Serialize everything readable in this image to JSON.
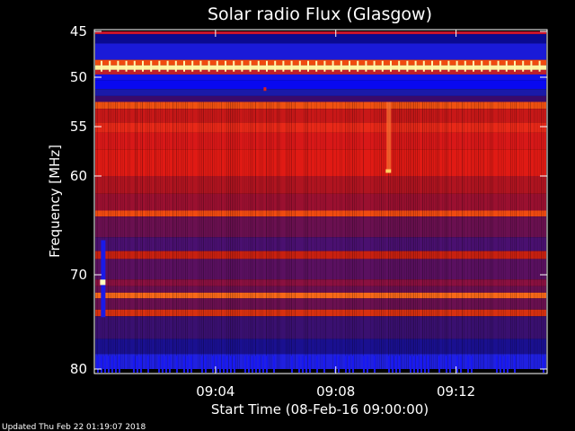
{
  "chart_data": {
    "type": "heatmap",
    "title": "Solar radio Flux (Glasgow)",
    "xlabel": "Start Time (08-Feb-16 09:00:00)",
    "ylabel": "Frequency [MHz]",
    "x_ticks": [
      "09:04",
      "09:08",
      "09:12"
    ],
    "x_tick_minutes": [
      4,
      8,
      12
    ],
    "xlim_minutes": [
      0,
      15
    ],
    "y_ticks": [
      45,
      50,
      55,
      60,
      70,
      80
    ],
    "ylim": [
      45,
      80
    ],
    "bands": [
      {
        "from": 45.0,
        "to": 45.3,
        "color": "#c8142a"
      },
      {
        "from": 45.3,
        "to": 46.3,
        "color": "#0a0a90"
      },
      {
        "from": 46.3,
        "to": 48.1,
        "color": "#1a1ad8"
      },
      {
        "from": 48.1,
        "to": 48.7,
        "color": "#f04a10"
      },
      {
        "from": 48.7,
        "to": 49.2,
        "color": "#fff2a0"
      },
      {
        "from": 49.2,
        "to": 49.7,
        "color": "#c0202a"
      },
      {
        "from": 49.7,
        "to": 50.3,
        "color": "#1010e8"
      },
      {
        "from": 50.3,
        "to": 51.2,
        "color": "#0808f0"
      },
      {
        "from": 51.2,
        "to": 51.9,
        "color": "#1a1aa8"
      },
      {
        "from": 51.9,
        "to": 52.5,
        "color": "#3a0a6a"
      },
      {
        "from": 52.5,
        "to": 53.2,
        "color": "#f05010"
      },
      {
        "from": 53.2,
        "to": 54.6,
        "color": "#c81818"
      },
      {
        "from": 54.6,
        "to": 55.6,
        "color": "#e82818"
      },
      {
        "from": 55.6,
        "to": 57.3,
        "color": "#d81818"
      },
      {
        "from": 57.3,
        "to": 60.0,
        "color": "#e01a14"
      },
      {
        "from": 60.0,
        "to": 61.8,
        "color": "#b01420"
      },
      {
        "from": 61.8,
        "to": 63.5,
        "color": "#9a1030"
      },
      {
        "from": 63.5,
        "to": 64.1,
        "color": "#f04a10"
      },
      {
        "from": 64.1,
        "to": 66.2,
        "color": "#6a1050"
      },
      {
        "from": 66.2,
        "to": 67.6,
        "color": "#4a1070"
      },
      {
        "from": 67.6,
        "to": 68.4,
        "color": "#c82010"
      },
      {
        "from": 68.4,
        "to": 70.5,
        "color": "#5a1060"
      },
      {
        "from": 70.5,
        "to": 71.2,
        "color": "#8a1040"
      },
      {
        "from": 71.2,
        "to": 71.9,
        "color": "#6a1050"
      },
      {
        "from": 71.9,
        "to": 72.5,
        "color": "#f86818"
      },
      {
        "from": 72.5,
        "to": 73.7,
        "color": "#6a1050"
      },
      {
        "from": 73.7,
        "to": 74.4,
        "color": "#d83010"
      },
      {
        "from": 74.4,
        "to": 76.8,
        "color": "#3a1070"
      },
      {
        "from": 76.8,
        "to": 78.4,
        "color": "#1a1090"
      },
      {
        "from": 78.4,
        "to": 80.0,
        "color": "#2020e0"
      }
    ],
    "features": {
      "periodic_line_mhz": 48.8,
      "burst_minute": 9.75,
      "burst_range_mhz": [
        52.5,
        59.5
      ],
      "left_strip_minute": 0.25,
      "left_strip_range_mhz": [
        66.5,
        74.5
      ]
    }
  },
  "footer": {
    "updated": "Updated Thu Feb 22 01:19:07 2018"
  }
}
